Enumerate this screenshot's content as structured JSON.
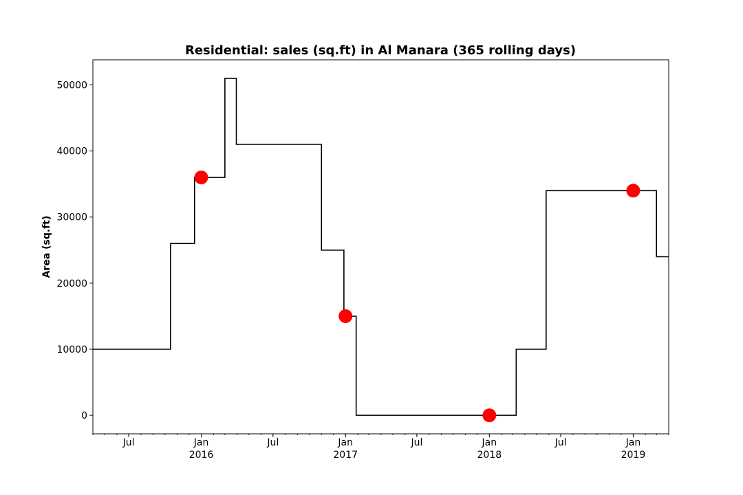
{
  "chart_data": {
    "type": "line",
    "title": "Residential: sales (sq.ft) in Al Manara (365 rolling days)",
    "xlabel": "",
    "ylabel": "Area (sq.ft)",
    "x_range": [
      "2015-04-01",
      "2019-04-01"
    ],
    "ylim": [
      -2800,
      53800
    ],
    "yticks": [
      0,
      10000,
      20000,
      30000,
      40000,
      50000
    ],
    "xticks": [
      {
        "date": "2015-07-01",
        "label": "Jul",
        "sublabel": ""
      },
      {
        "date": "2016-01-01",
        "label": "Jan",
        "sublabel": "2016"
      },
      {
        "date": "2016-07-01",
        "label": "Jul",
        "sublabel": ""
      },
      {
        "date": "2017-01-01",
        "label": "Jan",
        "sublabel": "2017"
      },
      {
        "date": "2017-07-01",
        "label": "Jul",
        "sublabel": ""
      },
      {
        "date": "2018-01-01",
        "label": "Jan",
        "sublabel": "2018"
      },
      {
        "date": "2018-07-01",
        "label": "Jul",
        "sublabel": ""
      },
      {
        "date": "2019-01-01",
        "label": "Jan",
        "sublabel": "2019"
      }
    ],
    "grid": false,
    "series": [
      {
        "style": "step",
        "color": "#000000",
        "points": [
          {
            "x": "2015-04-01",
            "y": 10000
          },
          {
            "x": "2015-10-15",
            "y": 26000
          },
          {
            "x": "2015-12-15",
            "y": 36000
          },
          {
            "x": "2016-03-01",
            "y": 51000
          },
          {
            "x": "2016-03-30",
            "y": 41000
          },
          {
            "x": "2016-11-01",
            "y": 25000
          },
          {
            "x": "2016-12-28",
            "y": 15000
          },
          {
            "x": "2017-01-28",
            "y": 0
          },
          {
            "x": "2018-03-10",
            "y": 10000
          },
          {
            "x": "2018-05-25",
            "y": 34000
          },
          {
            "x": "2019-03-01",
            "y": 24000
          },
          {
            "x": "2019-04-01",
            "y": 24000
          }
        ]
      },
      {
        "style": "markers",
        "color": "#ff0000",
        "points": [
          {
            "x": "2016-01-01",
            "y": 36000
          },
          {
            "x": "2017-01-01",
            "y": 15000
          },
          {
            "x": "2018-01-01",
            "y": 0
          },
          {
            "x": "2019-01-01",
            "y": 34000
          }
        ]
      }
    ]
  }
}
